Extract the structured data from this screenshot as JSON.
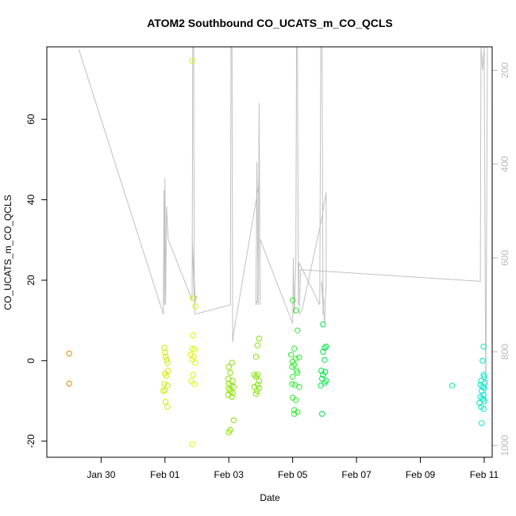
{
  "chart_data": {
    "type": "scatter",
    "title": "ATOM2 Southbound CO_UCATS_m_CO_QCLS",
    "xlabel": "Date",
    "ylabel": "CO_UCATS_m_CO_QCLS",
    "xlim": [
      -2.7,
      11.25
    ],
    "ylim": [
      -24,
      78
    ],
    "x_ticks": [
      {
        "v": -1.0,
        "label": "Jan 30"
      },
      {
        "v": 1.0,
        "label": "Feb 01"
      },
      {
        "v": 3.0,
        "label": "Feb 03"
      },
      {
        "v": 5.0,
        "label": "Feb 05"
      },
      {
        "v": 7.0,
        "label": "Feb 07"
      },
      {
        "v": 9.0,
        "label": "Feb 09"
      },
      {
        "v": 11.0,
        "label": "Feb 11"
      }
    ],
    "y_ticks": [
      {
        "v": -20,
        "label": "-20"
      },
      {
        "v": 0,
        "label": "0"
      },
      {
        "v": 20,
        "label": "20"
      },
      {
        "v": 40,
        "label": "40"
      },
      {
        "v": 60,
        "label": "60"
      }
    ],
    "right_axis": {
      "note": "pressure axis, inverted",
      "lim": [
        1025,
        150
      ],
      "ticks": [
        {
          "v": 200,
          "label": "200"
        },
        {
          "v": 400,
          "label": "400"
        },
        {
          "v": 600,
          "label": "600"
        },
        {
          "v": 800,
          "label": "800"
        },
        {
          "v": 1000,
          "label": "1000"
        }
      ]
    },
    "series": [
      {
        "name": "points",
        "kind": "scatter",
        "points": [
          {
            "x": -2.0,
            "y": 1.8,
            "color": "#e08a00"
          },
          {
            "x": -2.0,
            "y": -5.7,
            "color": "#e08a00"
          },
          {
            "x": 0.98,
            "y": 3.2,
            "color": "#d4e800"
          },
          {
            "x": 1.0,
            "y": 2.0,
            "color": "#d4e800"
          },
          {
            "x": 1.02,
            "y": 1.0,
            "color": "#d4e800"
          },
          {
            "x": 1.05,
            "y": 0.2,
            "color": "#d4e800"
          },
          {
            "x": 1.08,
            "y": -0.5,
            "color": "#d4e800"
          },
          {
            "x": 1.1,
            "y": -2.5,
            "color": "#d4e800"
          },
          {
            "x": 1.0,
            "y": -3.2,
            "color": "#d4e800"
          },
          {
            "x": 1.05,
            "y": -3.8,
            "color": "#d4e800"
          },
          {
            "x": 0.98,
            "y": -5.8,
            "color": "#d4e800"
          },
          {
            "x": 1.08,
            "y": -6.2,
            "color": "#d4e800"
          },
          {
            "x": 0.95,
            "y": -7.5,
            "color": "#d4e800"
          },
          {
            "x": 1.0,
            "y": -7.3,
            "color": "#d4e800"
          },
          {
            "x": 1.02,
            "y": -10.2,
            "color": "#d4e800"
          },
          {
            "x": 1.08,
            "y": -11.5,
            "color": "#d4e800"
          },
          {
            "x": 1.85,
            "y": 74.5,
            "color": "#dcf500"
          },
          {
            "x": 1.85,
            "y": 15.5,
            "color": "#dcf500"
          },
          {
            "x": 1.95,
            "y": 13.5,
            "color": "#dcf500"
          },
          {
            "x": 1.88,
            "y": 6.3,
            "color": "#dcf500"
          },
          {
            "x": 1.85,
            "y": 3.0,
            "color": "#dcf500"
          },
          {
            "x": 1.92,
            "y": 2.8,
            "color": "#dcf500"
          },
          {
            "x": 1.8,
            "y": 1.5,
            "color": "#dcf500"
          },
          {
            "x": 1.9,
            "y": 1.0,
            "color": "#dcf500"
          },
          {
            "x": 1.85,
            "y": 0.2,
            "color": "#dcf500"
          },
          {
            "x": 1.95,
            "y": -0.5,
            "color": "#dcf500"
          },
          {
            "x": 1.88,
            "y": -3.5,
            "color": "#dcf500"
          },
          {
            "x": 1.82,
            "y": -5.0,
            "color": "#dcf500"
          },
          {
            "x": 1.92,
            "y": -5.8,
            "color": "#dcf500"
          },
          {
            "x": 1.85,
            "y": -20.8,
            "color": "#dcf500"
          },
          {
            "x": 3.0,
            "y": -1.5,
            "color": "#8ee000"
          },
          {
            "x": 3.1,
            "y": -0.5,
            "color": "#8ee000"
          },
          {
            "x": 3.05,
            "y": -3.0,
            "color": "#8ee000"
          },
          {
            "x": 2.98,
            "y": -4.5,
            "color": "#8ee000"
          },
          {
            "x": 3.12,
            "y": -5.0,
            "color": "#8ee000"
          },
          {
            "x": 3.0,
            "y": -5.8,
            "color": "#8ee000"
          },
          {
            "x": 3.08,
            "y": -6.2,
            "color": "#8ee000"
          },
          {
            "x": 3.15,
            "y": -6.5,
            "color": "#8ee000"
          },
          {
            "x": 3.0,
            "y": -7.0,
            "color": "#8ee000"
          },
          {
            "x": 3.05,
            "y": -7.5,
            "color": "#8ee000"
          },
          {
            "x": 3.12,
            "y": -8.0,
            "color": "#8ee000"
          },
          {
            "x": 2.98,
            "y": -8.5,
            "color": "#8ee000"
          },
          {
            "x": 3.1,
            "y": -9.0,
            "color": "#8ee000"
          },
          {
            "x": 3.15,
            "y": -14.8,
            "color": "#8ee000"
          },
          {
            "x": 3.05,
            "y": -17.2,
            "color": "#8ee000"
          },
          {
            "x": 3.0,
            "y": -17.8,
            "color": "#8ee000"
          },
          {
            "x": 3.95,
            "y": 5.5,
            "color": "#7fe800"
          },
          {
            "x": 3.9,
            "y": 3.8,
            "color": "#7fe800"
          },
          {
            "x": 3.85,
            "y": 1.0,
            "color": "#7fe800"
          },
          {
            "x": 3.8,
            "y": -3.5,
            "color": "#7fe800"
          },
          {
            "x": 3.9,
            "y": -3.5,
            "color": "#7fe800"
          },
          {
            "x": 3.85,
            "y": -4.0,
            "color": "#7fe800"
          },
          {
            "x": 3.95,
            "y": -5.0,
            "color": "#7fe800"
          },
          {
            "x": 3.9,
            "y": -6.0,
            "color": "#7fe800"
          },
          {
            "x": 3.8,
            "y": -6.5,
            "color": "#7fe800"
          },
          {
            "x": 3.95,
            "y": -6.8,
            "color": "#7fe800"
          },
          {
            "x": 3.88,
            "y": -7.5,
            "color": "#7fe800"
          },
          {
            "x": 3.85,
            "y": -8.2,
            "color": "#7fe800"
          },
          {
            "x": 5.0,
            "y": 15.0,
            "color": "#33e833"
          },
          {
            "x": 5.1,
            "y": 12.5,
            "color": "#33e833"
          },
          {
            "x": 5.15,
            "y": 7.5,
            "color": "#33e833"
          },
          {
            "x": 5.05,
            "y": 3.0,
            "color": "#33e833"
          },
          {
            "x": 4.95,
            "y": 1.5,
            "color": "#33e833"
          },
          {
            "x": 5.1,
            "y": 0.5,
            "color": "#33e833"
          },
          {
            "x": 5.0,
            "y": -0.2,
            "color": "#33e833"
          },
          {
            "x": 5.2,
            "y": 0.8,
            "color": "#33e833"
          },
          {
            "x": 5.05,
            "y": -1.0,
            "color": "#33e833"
          },
          {
            "x": 4.98,
            "y": -1.5,
            "color": "#33e833"
          },
          {
            "x": 5.12,
            "y": -2.5,
            "color": "#33e833"
          },
          {
            "x": 5.15,
            "y": -3.0,
            "color": "#33e833"
          },
          {
            "x": 5.0,
            "y": -4.0,
            "color": "#33e833"
          },
          {
            "x": 4.98,
            "y": -5.8,
            "color": "#33e833"
          },
          {
            "x": 5.08,
            "y": -6.0,
            "color": "#33e833"
          },
          {
            "x": 5.2,
            "y": -6.5,
            "color": "#33e833"
          },
          {
            "x": 5.0,
            "y": -9.2,
            "color": "#33e833"
          },
          {
            "x": 5.1,
            "y": -9.8,
            "color": "#33e833"
          },
          {
            "x": 5.05,
            "y": -12.3,
            "color": "#33e833"
          },
          {
            "x": 5.15,
            "y": -12.8,
            "color": "#33e833"
          },
          {
            "x": 5.05,
            "y": -13.2,
            "color": "#33e833"
          },
          {
            "x": 5.95,
            "y": 9.0,
            "color": "#00e845"
          },
          {
            "x": 6.05,
            "y": 3.5,
            "color": "#00e845"
          },
          {
            "x": 6.0,
            "y": 3.2,
            "color": "#00e845"
          },
          {
            "x": 5.95,
            "y": 2.2,
            "color": "#00e845"
          },
          {
            "x": 6.0,
            "y": 0.2,
            "color": "#00e845"
          },
          {
            "x": 5.9,
            "y": -2.5,
            "color": "#00e845"
          },
          {
            "x": 6.02,
            "y": -2.8,
            "color": "#00e845"
          },
          {
            "x": 5.95,
            "y": -3.5,
            "color": "#00e845"
          },
          {
            "x": 5.92,
            "y": -4.5,
            "color": "#00e845"
          },
          {
            "x": 6.05,
            "y": -5.0,
            "color": "#00e845"
          },
          {
            "x": 6.0,
            "y": -5.5,
            "color": "#00e845"
          },
          {
            "x": 5.88,
            "y": -6.2,
            "color": "#00e845"
          },
          {
            "x": 5.92,
            "y": -13.2,
            "color": "#00e845"
          },
          {
            "x": 10.0,
            "y": -6.2,
            "color": "#00e8a8"
          },
          {
            "x": 10.98,
            "y": 3.5,
            "color": "#00e8c8"
          },
          {
            "x": 10.95,
            "y": 0.0,
            "color": "#00e8c8"
          },
          {
            "x": 10.98,
            "y": -3.5,
            "color": "#00e8c8"
          },
          {
            "x": 11.0,
            "y": -4.0,
            "color": "#00e8c8"
          },
          {
            "x": 10.9,
            "y": -5.0,
            "color": "#00e8c8"
          },
          {
            "x": 11.02,
            "y": -5.5,
            "color": "#00e8c8"
          },
          {
            "x": 10.88,
            "y": -6.0,
            "color": "#00e8c8"
          },
          {
            "x": 10.95,
            "y": -6.5,
            "color": "#00e8c8"
          },
          {
            "x": 11.0,
            "y": -6.8,
            "color": "#00e8c8"
          },
          {
            "x": 10.92,
            "y": -7.5,
            "color": "#00e8c8"
          },
          {
            "x": 10.98,
            "y": -8.5,
            "color": "#00e8c8"
          },
          {
            "x": 10.88,
            "y": -9.0,
            "color": "#00e8c8"
          },
          {
            "x": 10.95,
            "y": -9.5,
            "color": "#00e8c8"
          },
          {
            "x": 11.0,
            "y": -10.0,
            "color": "#00e8c8"
          },
          {
            "x": 10.85,
            "y": -10.5,
            "color": "#00e8c8"
          },
          {
            "x": 10.9,
            "y": -11.5,
            "color": "#00e8c8"
          },
          {
            "x": 10.98,
            "y": -12.0,
            "color": "#00e8c8"
          },
          {
            "x": 10.92,
            "y": -15.5,
            "color": "#00e8c8"
          }
        ]
      },
      {
        "name": "pressure track",
        "kind": "line",
        "color": "#c0c0c0",
        "points": [
          [
            -1.7,
            155
          ],
          [
            0.95,
            720
          ],
          [
            0.97,
            455
          ],
          [
            0.98,
            700
          ],
          [
            1.0,
            430
          ],
          [
            1.02,
            700
          ],
          [
            1.05,
            490
          ],
          [
            1.1,
            560
          ],
          [
            1.85,
            690
          ],
          [
            1.87,
            150
          ],
          [
            1.9,
            150
          ],
          [
            1.92,
            700
          ],
          [
            1.95,
            690
          ],
          [
            1.85,
            555
          ],
          [
            1.92,
            690
          ],
          [
            2.0,
            680
          ],
          [
            1.92,
            700
          ],
          [
            1.95,
            720
          ],
          [
            3.05,
            700
          ],
          [
            3.07,
            150
          ],
          [
            3.1,
            150
          ],
          [
            3.12,
            780
          ],
          [
            3.15,
            760
          ],
          [
            3.95,
            440
          ],
          [
            3.9,
            690
          ],
          [
            3.85,
            700
          ],
          [
            3.88,
            395
          ],
          [
            3.92,
            700
          ],
          [
            3.95,
            270
          ],
          [
            3.98,
            700
          ],
          [
            3.98,
            560
          ],
          [
            5.0,
            740
          ],
          [
            5.02,
            600
          ],
          [
            5.05,
            720
          ],
          [
            5.1,
            610
          ],
          [
            5.12,
            150
          ],
          [
            5.15,
            150
          ],
          [
            5.18,
            700
          ],
          [
            5.2,
            610
          ],
          [
            5.85,
            700
          ],
          [
            5.88,
            150
          ],
          [
            5.92,
            150
          ],
          [
            5.95,
            720
          ],
          [
            5.98,
            695
          ],
          [
            5.9,
            650
          ],
          [
            6.0,
            740
          ],
          [
            6.05,
            650
          ],
          [
            6.05,
            460
          ],
          [
            5.9,
            520
          ],
          [
            5.3,
            710
          ],
          [
            5.2,
            720
          ],
          [
            5.25,
            625
          ],
          [
            10.88,
            650
          ],
          [
            10.9,
            150
          ],
          [
            10.95,
            200
          ],
          [
            11.0,
            150
          ],
          [
            11.05,
            920
          ],
          [
            11.1,
            150
          ]
        ]
      }
    ]
  }
}
